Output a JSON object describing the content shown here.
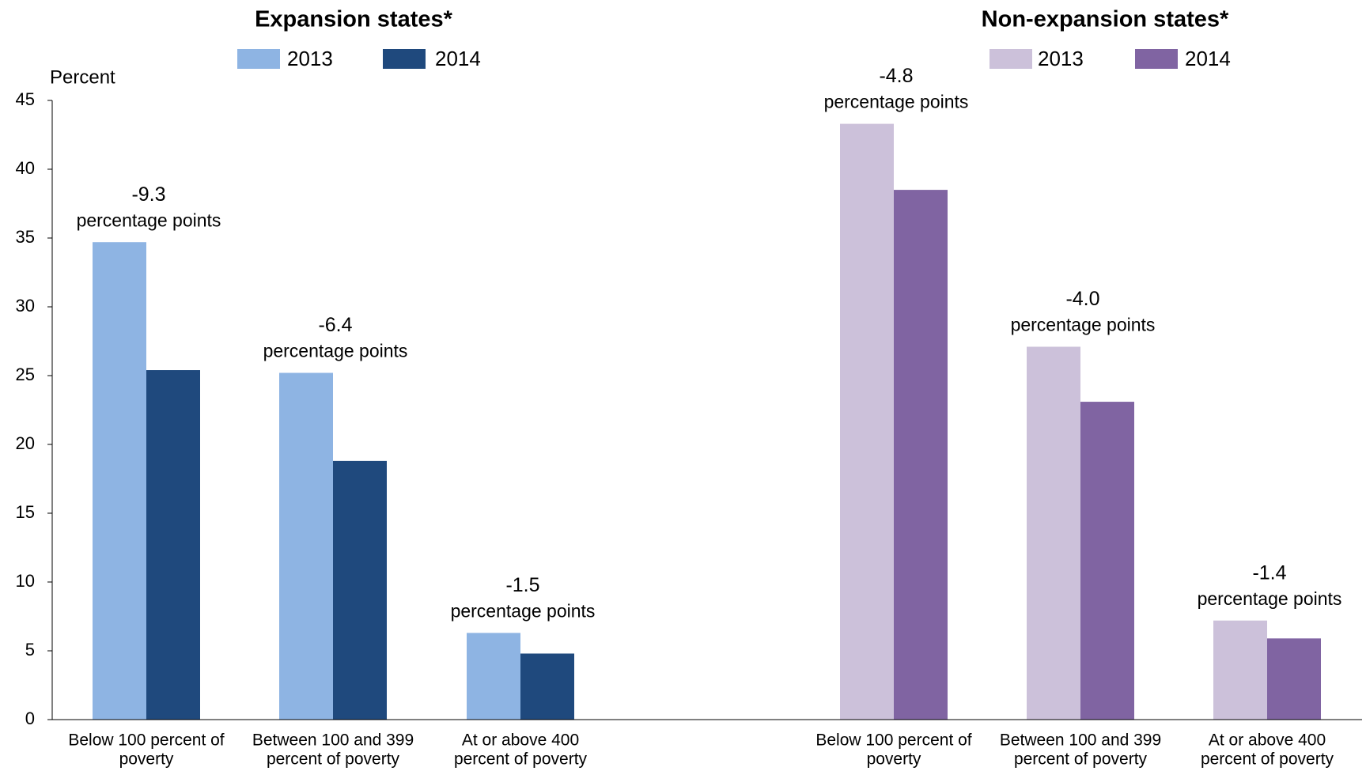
{
  "chart_data": [
    {
      "type": "bar",
      "title": "Expansion states*",
      "y_label": "Percent",
      "categories": [
        [
          "Below 100 percent of",
          "poverty"
        ],
        [
          "Between 100 and 399",
          "percent of poverty"
        ],
        [
          "At or above 400",
          "percent of poverty"
        ]
      ],
      "series": [
        {
          "name": "2013",
          "color": "#8eb4e3",
          "values": [
            34.7,
            25.2,
            6.3
          ]
        },
        {
          "name": "2014",
          "color": "#1f497d",
          "values": [
            25.4,
            18.8,
            4.8
          ]
        }
      ],
      "annotations": [
        [
          "-9.3",
          "percentage points"
        ],
        [
          "-6.4",
          "percentage points"
        ],
        [
          "-1.5",
          "percentage points"
        ]
      ],
      "ylim": [
        0,
        45
      ],
      "yticks": [
        0,
        5,
        10,
        15,
        20,
        25,
        30,
        35,
        40,
        45
      ]
    },
    {
      "type": "bar",
      "title": "Non-expansion states*",
      "categories": [
        [
          "Below 100 percent of",
          "poverty"
        ],
        [
          "Between 100 and 399",
          "percent of poverty"
        ],
        [
          "At or above 400",
          "percent of poverty"
        ]
      ],
      "series": [
        {
          "name": "2013",
          "color": "#ccc1da",
          "values": [
            43.3,
            27.1,
            7.2
          ]
        },
        {
          "name": "2014",
          "color": "#8064a2",
          "values": [
            38.5,
            23.1,
            5.9
          ]
        }
      ],
      "annotations": [
        [
          "-4.8",
          "percentage points"
        ],
        [
          "-4.0",
          "percentage points"
        ],
        [
          "-1.4",
          "percentage points"
        ]
      ],
      "ylim": [
        0,
        45
      ]
    }
  ]
}
